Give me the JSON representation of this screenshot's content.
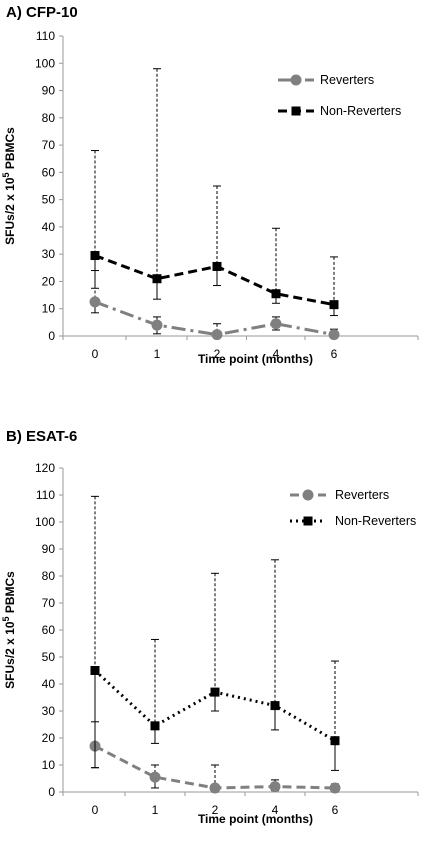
{
  "chart_data": [
    {
      "type": "line",
      "title": "A)  CFP-10",
      "xlabel": "Time point (months)",
      "ylabel": "SFUs/2 x 10",
      "ylabel_sup": "5",
      "ylabel_suffix": " PBMCs",
      "categories": [
        "0",
        "1",
        "2",
        "4",
        "6"
      ],
      "ylim": [
        0,
        110
      ],
      "yticks": [
        0,
        10,
        20,
        30,
        40,
        50,
        60,
        70,
        80,
        90,
        100,
        110
      ],
      "legend_position": "top-right",
      "series": [
        {
          "name": "Reverters",
          "color": "#808080",
          "marker": "circle",
          "dash": "14 5 3 5",
          "values": [
            12.5,
            4,
            0.5,
            4.5,
            0.5
          ],
          "err_low": [
            8.5,
            0.8,
            0,
            2.2,
            0
          ],
          "err_high": [
            24,
            7,
            4.5,
            7,
            2.5
          ]
        },
        {
          "name": "Non-Reverters",
          "color": "#000000",
          "marker": "square",
          "dash": "9 5",
          "values": [
            29.5,
            21,
            25.5,
            15.5,
            11.5
          ],
          "err_low": [
            17.5,
            13.5,
            18.5,
            12,
            7.5
          ],
          "err_high": [
            68,
            98,
            55,
            39.5,
            29
          ]
        }
      ]
    },
    {
      "type": "line",
      "title": "B)  ESAT-6",
      "xlabel": "Time point (months)",
      "ylabel": "SFUs/2 x 10",
      "ylabel_sup": "5",
      "ylabel_suffix": " PBMCs",
      "categories": [
        "0",
        "1",
        "2",
        "4",
        "6"
      ],
      "ylim": [
        0,
        120
      ],
      "yticks": [
        0,
        10,
        20,
        30,
        40,
        50,
        60,
        70,
        80,
        90,
        100,
        110,
        120
      ],
      "legend_position": "top-right",
      "series": [
        {
          "name": "Reverters",
          "color": "#808080",
          "marker": "circle",
          "dash": "9 5",
          "values": [
            17,
            5.5,
            1.5,
            2,
            1.5
          ],
          "err_low": [
            9,
            1.5,
            0,
            0.5,
            0
          ],
          "err_high": [
            26,
            10,
            10,
            4.5,
            3
          ]
        },
        {
          "name": "Non-Reverters",
          "color": "#000000",
          "marker": "square",
          "dash": "2 4",
          "values": [
            45,
            24.5,
            37,
            32,
            19
          ],
          "err_low": [
            9,
            18,
            30,
            23,
            8
          ],
          "err_high": [
            109.5,
            56.5,
            81,
            86,
            48.5
          ]
        }
      ]
    }
  ]
}
